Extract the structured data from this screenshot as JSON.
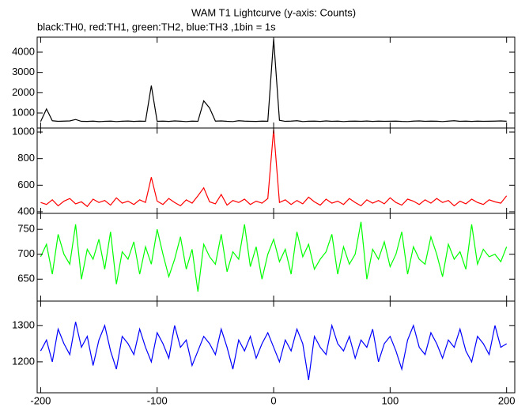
{
  "chart_data": [
    {
      "type": "line",
      "title": "WAM T1 Lightcurve (y-axis: Counts)",
      "subtitle": "black:TH0, red:TH1, green:TH2, blue:TH3 ,1bin = 1s",
      "color": "#000000",
      "x": [
        -200,
        -195,
        -190,
        -185,
        -180,
        -175,
        -170,
        -165,
        -160,
        -155,
        -150,
        -145,
        -140,
        -135,
        -130,
        -125,
        -120,
        -115,
        -110,
        -105,
        -100,
        -95,
        -90,
        -85,
        -80,
        -75,
        -70,
        -65,
        -60,
        -55,
        -50,
        -45,
        -40,
        -35,
        -30,
        -25,
        -20,
        -15,
        -10,
        -5,
        0,
        5,
        10,
        15,
        20,
        25,
        30,
        35,
        40,
        45,
        50,
        55,
        60,
        65,
        70,
        75,
        80,
        85,
        90,
        95,
        100,
        105,
        110,
        115,
        120,
        125,
        130,
        135,
        140,
        145,
        150,
        155,
        160,
        165,
        170,
        175,
        180,
        185,
        190,
        195,
        200
      ],
      "values": [
        580,
        1200,
        620,
        590,
        600,
        610,
        680,
        590,
        585,
        600,
        575,
        590,
        600,
        580,
        595,
        605,
        585,
        600,
        590,
        2350,
        590,
        600,
        585,
        610,
        595,
        580,
        600,
        590,
        1600,
        1250,
        600,
        610,
        590,
        580,
        620,
        600,
        590,
        585,
        600,
        595,
        4650,
        640,
        590,
        600,
        620,
        580,
        595,
        600,
        585,
        610,
        590,
        600,
        580,
        595,
        600,
        590,
        605,
        585,
        600,
        590,
        595,
        600,
        585,
        580,
        600,
        610,
        590,
        600,
        595,
        580,
        600,
        620,
        590,
        600,
        585,
        600,
        590,
        595,
        600,
        610,
        595
      ],
      "xlim": [
        -203,
        207
      ],
      "ylim": [
        260,
        4740
      ],
      "yticks": [
        1000,
        2000,
        3000,
        4000
      ]
    },
    {
      "type": "line",
      "color": "#ff0000",
      "x": [
        -200,
        -195,
        -190,
        -185,
        -180,
        -175,
        -170,
        -165,
        -160,
        -155,
        -150,
        -145,
        -140,
        -135,
        -130,
        -125,
        -120,
        -115,
        -110,
        -105,
        -100,
        -95,
        -90,
        -85,
        -80,
        -75,
        -70,
        -65,
        -60,
        -55,
        -50,
        -45,
        -40,
        -35,
        -30,
        -25,
        -20,
        -15,
        -10,
        -5,
        0,
        5,
        10,
        15,
        20,
        25,
        30,
        35,
        40,
        45,
        50,
        55,
        60,
        65,
        70,
        75,
        80,
        85,
        90,
        95,
        100,
        105,
        110,
        115,
        120,
        125,
        130,
        135,
        140,
        145,
        150,
        155,
        160,
        165,
        170,
        175,
        180,
        185,
        190,
        195,
        200
      ],
      "values": [
        470,
        455,
        490,
        445,
        480,
        500,
        460,
        475,
        440,
        495,
        470,
        485,
        450,
        505,
        465,
        480,
        455,
        490,
        470,
        660,
        480,
        455,
        500,
        470,
        445,
        490,
        465,
        520,
        580,
        475,
        460,
        530,
        450,
        485,
        470,
        495,
        455,
        480,
        465,
        500,
        1020,
        470,
        490,
        455,
        485,
        460,
        510,
        475,
        450,
        495,
        465,
        480,
        455,
        500,
        470,
        445,
        490,
        465,
        485,
        460,
        505,
        470,
        450,
        495,
        480,
        455,
        490,
        465,
        500,
        470,
        485,
        445,
        480,
        460,
        495,
        470,
        455,
        490,
        475,
        465,
        520
      ],
      "xlim": [
        -203,
        207
      ],
      "ylim": [
        388,
        1030
      ],
      "yticks": [
        400,
        600,
        800,
        1000
      ]
    },
    {
      "type": "line",
      "color": "#00ff00",
      "x": [
        -200,
        -195,
        -190,
        -185,
        -180,
        -175,
        -170,
        -165,
        -160,
        -155,
        -150,
        -145,
        -140,
        -135,
        -130,
        -125,
        -120,
        -115,
        -110,
        -105,
        -100,
        -95,
        -90,
        -85,
        -80,
        -75,
        -70,
        -65,
        -60,
        -55,
        -50,
        -45,
        -40,
        -35,
        -30,
        -25,
        -20,
        -15,
        -10,
        -5,
        0,
        5,
        10,
        15,
        20,
        25,
        30,
        35,
        40,
        45,
        50,
        55,
        60,
        65,
        70,
        75,
        80,
        85,
        90,
        95,
        100,
        105,
        110,
        115,
        120,
        125,
        130,
        135,
        140,
        145,
        150,
        155,
        160,
        165,
        170,
        175,
        180,
        185,
        190,
        195,
        200
      ],
      "values": [
        695,
        720,
        660,
        740,
        700,
        680,
        760,
        650,
        710,
        690,
        730,
        670,
        745,
        640,
        705,
        690,
        725,
        660,
        715,
        680,
        750,
        700,
        655,
        690,
        735,
        670,
        710,
        625,
        720,
        695,
        680,
        740,
        665,
        705,
        690,
        760,
        675,
        715,
        650,
        700,
        730,
        685,
        710,
        660,
        745,
        695,
        720,
        670,
        690,
        705,
        740,
        660,
        715,
        680,
        700,
        765,
        650,
        710,
        690,
        725,
        675,
        700,
        745,
        660,
        715,
        690,
        680,
        735,
        700,
        655,
        720,
        690,
        705,
        670,
        760,
        680,
        710,
        695,
        700,
        685,
        715
      ],
      "xlim": [
        -203,
        207
      ],
      "ylim": [
        606,
        782
      ],
      "yticks": [
        650,
        700,
        750
      ]
    },
    {
      "type": "line",
      "color": "#0000ff",
      "x": [
        -200,
        -195,
        -190,
        -185,
        -180,
        -175,
        -170,
        -165,
        -160,
        -155,
        -150,
        -145,
        -140,
        -135,
        -130,
        -125,
        -120,
        -115,
        -110,
        -105,
        -100,
        -95,
        -90,
        -85,
        -80,
        -75,
        -70,
        -65,
        -60,
        -55,
        -50,
        -45,
        -40,
        -35,
        -30,
        -25,
        -20,
        -15,
        -10,
        -5,
        0,
        5,
        10,
        15,
        20,
        25,
        30,
        35,
        40,
        45,
        50,
        55,
        60,
        65,
        70,
        75,
        80,
        85,
        90,
        95,
        100,
        105,
        110,
        115,
        120,
        125,
        130,
        135,
        140,
        145,
        150,
        155,
        160,
        165,
        170,
        175,
        180,
        185,
        190,
        195,
        200
      ],
      "values": [
        1230,
        1260,
        1200,
        1290,
        1250,
        1220,
        1310,
        1240,
        1270,
        1190,
        1260,
        1300,
        1230,
        1180,
        1270,
        1250,
        1220,
        1290,
        1240,
        1200,
        1280,
        1250,
        1210,
        1300,
        1240,
        1260,
        1190,
        1230,
        1270,
        1250,
        1220,
        1290,
        1240,
        1180,
        1260,
        1230,
        1270,
        1210,
        1250,
        1280,
        1240,
        1200,
        1260,
        1230,
        1290,
        1250,
        1150,
        1270,
        1240,
        1220,
        1300,
        1250,
        1230,
        1270,
        1210,
        1260,
        1240,
        1290,
        1200,
        1250,
        1270,
        1230,
        1180,
        1260,
        1300,
        1240,
        1220,
        1280,
        1250,
        1210,
        1260,
        1240,
        1290,
        1230,
        1200,
        1270,
        1250,
        1220,
        1300,
        1240,
        1250
      ],
      "xlim": [
        -203,
        207
      ],
      "ylim": [
        1115,
        1367
      ],
      "yticks": [
        1200,
        1300
      ],
      "xticks": [
        -200,
        -100,
        0,
        100,
        200
      ]
    }
  ]
}
